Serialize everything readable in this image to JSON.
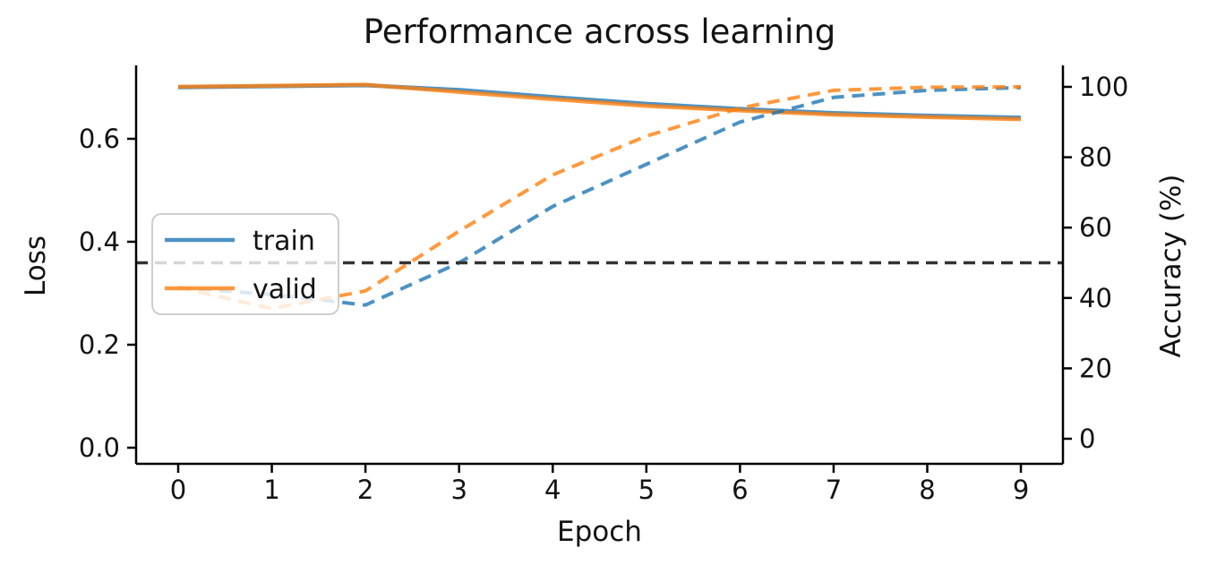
{
  "chart_data": {
    "type": "line",
    "title": "Performance across learning",
    "xlabel": "Epoch",
    "ylabel_left": "Loss",
    "ylabel_right": "Accuracy (%)",
    "x": [
      0,
      1,
      2,
      3,
      4,
      5,
      6,
      7,
      8,
      9
    ],
    "x_tick_labels": [
      "0",
      "1",
      "2",
      "3",
      "4",
      "5",
      "6",
      "7",
      "8",
      "9"
    ],
    "y_left_tick_labels": [
      "0.0",
      "0.2",
      "0.4",
      "0.6"
    ],
    "y_left_tick_values": [
      0.0,
      0.2,
      0.4,
      0.6
    ],
    "y_right_tick_labels": [
      "0",
      "20",
      "40",
      "60",
      "80",
      "100"
    ],
    "y_right_tick_values": [
      0,
      20,
      40,
      60,
      80,
      100
    ],
    "xlim": [
      -0.45,
      9.45
    ],
    "ylim_left": [
      -0.03,
      0.74
    ],
    "ylim_right": [
      -7,
      106
    ],
    "grid": false,
    "legend": {
      "position": "center left",
      "entries": [
        {
          "label": "train",
          "color": "#1f77b4"
        },
        {
          "label": "valid",
          "color": "#ff7f0e"
        }
      ]
    },
    "series": [
      {
        "name": "train loss",
        "key": "train-loss",
        "axis": "left",
        "line_style": "solid",
        "color": "#1f77b4",
        "opacity": 0.8,
        "values": [
          0.7,
          0.702,
          0.704,
          0.695,
          0.681,
          0.668,
          0.658,
          0.65,
          0.645,
          0.641
        ]
      },
      {
        "name": "valid loss",
        "key": "valid-loss",
        "axis": "left",
        "line_style": "solid",
        "color": "#ff7f0e",
        "opacity": 0.8,
        "values": [
          0.701,
          0.703,
          0.705,
          0.691,
          0.677,
          0.664,
          0.655,
          0.647,
          0.642,
          0.638
        ]
      },
      {
        "name": "train accuracy",
        "key": "train-accuracy",
        "axis": "right",
        "line_style": "dashed",
        "color": "#1f77b4",
        "opacity": 0.8,
        "values": [
          43,
          41,
          38,
          50,
          66,
          78,
          90,
          97,
          99,
          99.8
        ]
      },
      {
        "name": "valid accuracy",
        "key": "valid-accuracy",
        "axis": "right",
        "line_style": "dashed",
        "color": "#ff7f0e",
        "opacity": 0.8,
        "values": [
          43,
          37,
          42,
          59,
          75,
          86,
          94,
          99,
          99.9,
          100
        ]
      }
    ],
    "annotations": [
      {
        "name": "chance-line",
        "type": "hline",
        "axis": "right",
        "value": 50,
        "line_style": "dashed",
        "color": "#333333"
      }
    ]
  }
}
